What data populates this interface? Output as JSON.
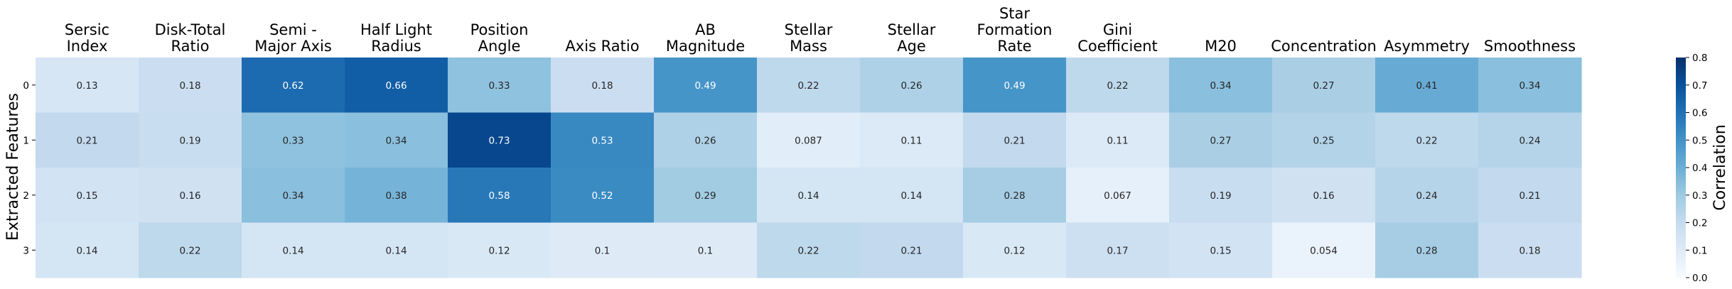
{
  "chart_data": {
    "type": "heatmap",
    "columns": [
      [
        "Sersic",
        "Index"
      ],
      [
        "Disk-Total",
        "Ratio"
      ],
      [
        "Semi -",
        "Major Axis"
      ],
      [
        "Half Light",
        "Radius"
      ],
      [
        "Position",
        "Angle"
      ],
      [
        "Axis Ratio"
      ],
      [
        "AB",
        "Magnitude"
      ],
      [
        "Stellar",
        "Mass"
      ],
      [
        "Stellar",
        "Age"
      ],
      [
        "Star",
        "Formation",
        "Rate"
      ],
      [
        "Gini",
        "Coefficient"
      ],
      [
        "M20"
      ],
      [
        "Concentration"
      ],
      [
        "Asymmetry"
      ],
      [
        "Smoothness"
      ]
    ],
    "rows": [
      "0",
      "1",
      "2",
      "3"
    ],
    "values": [
      [
        0.13,
        0.18,
        0.62,
        0.66,
        0.33,
        0.18,
        0.49,
        0.22,
        0.26,
        0.49,
        0.22,
        0.34,
        0.27,
        0.41,
        0.34
      ],
      [
        0.21,
        0.19,
        0.33,
        0.34,
        0.73,
        0.53,
        0.26,
        0.087,
        0.11,
        0.21,
        0.11,
        0.27,
        0.25,
        0.22,
        0.24
      ],
      [
        0.15,
        0.16,
        0.34,
        0.38,
        0.58,
        0.52,
        0.29,
        0.14,
        0.14,
        0.28,
        0.067,
        0.19,
        0.16,
        0.24,
        0.21
      ],
      [
        0.14,
        0.22,
        0.14,
        0.14,
        0.12,
        0.1,
        0.1,
        0.22,
        0.21,
        0.12,
        0.17,
        0.15,
        0.054,
        0.28,
        0.18
      ]
    ],
    "ylabel": "Extracted Features",
    "colorbar": {
      "label": "Correlation",
      "range": [
        0.0,
        0.8
      ],
      "ticks": [
        "0.0",
        "0.1",
        "0.2",
        "0.3",
        "0.4",
        "0.5",
        "0.6",
        "0.7",
        "0.8"
      ],
      "colormap": "Blues"
    }
  }
}
